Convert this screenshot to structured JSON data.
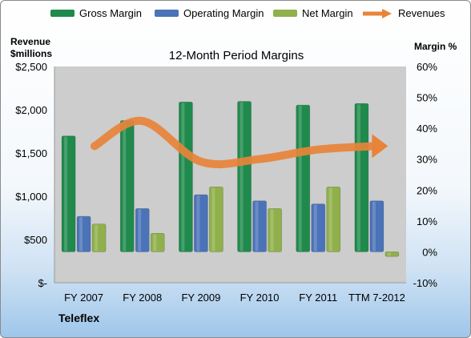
{
  "legend": {
    "gross": "Gross Margin",
    "operating": "Operating Margin",
    "net": "Net Margin",
    "revenues": "Revenues"
  },
  "left_axis_title_line1": "Revenue",
  "left_axis_title_line2": "$millions",
  "right_axis_title": "Margin %",
  "company": "Teleflex",
  "colors": {
    "gross": "#1f8a4c",
    "operating": "#4a73b8",
    "net": "#8fb04a",
    "revenues": "#e8833a",
    "plot_bg": "#cdcdcd"
  },
  "chart_data": {
    "type": "bar",
    "title": "12-Month Period Margins",
    "categories": [
      "FY 2007",
      "FY 2008",
      "FY 2009",
      "FY 2010",
      "FY 2011",
      "TTM 7-2012"
    ],
    "series": [
      {
        "name": "Gross Margin",
        "axis": "right",
        "values": [
          37.5,
          42.5,
          48.5,
          48.7,
          47.5,
          48.0
        ]
      },
      {
        "name": "Operating Margin",
        "axis": "right",
        "values": [
          11.5,
          14.0,
          18.5,
          16.5,
          15.5,
          16.5
        ]
      },
      {
        "name": "Net Margin",
        "axis": "right",
        "values": [
          9.0,
          6.0,
          21.0,
          14.0,
          21.0,
          -1.5
        ]
      },
      {
        "name": "Revenues",
        "axis": "left",
        "type": "line",
        "values": [
          1580,
          1870,
          1400,
          1430,
          1540,
          1580
        ]
      }
    ],
    "ylabel_left": "Revenue $millions",
    "ylabel_right": "Margin %",
    "left_ticks": [
      "$-",
      "$500",
      "$1,000",
      "$1,500",
      "$2,000",
      "$2,500"
    ],
    "right_ticks": [
      "-10%",
      "0%",
      "10%",
      "20%",
      "30%",
      "40%",
      "50%",
      "60%"
    ],
    "ylim_left": [
      0,
      2500
    ],
    "ylim_right": [
      -10,
      60
    ],
    "legend_position": "top",
    "grid": false
  }
}
